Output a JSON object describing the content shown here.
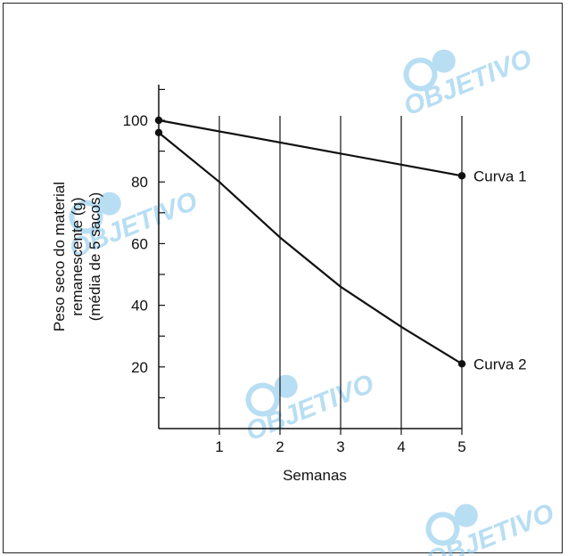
{
  "chart_data": {
    "type": "line",
    "xlabel": "Semanas",
    "ylabel_lines": [
      "Peso seco do material",
      "remanescente (g)",
      "(média de 5 sacos)"
    ],
    "x_ticks": [
      1,
      2,
      3,
      4,
      5
    ],
    "y_ticks": [
      20,
      40,
      60,
      80,
      100
    ],
    "xlim": [
      0,
      5
    ],
    "ylim": [
      0,
      110
    ],
    "grid": "vertical",
    "series": [
      {
        "name": "Curva 1",
        "x": [
          0,
          5
        ],
        "y": [
          100,
          82
        ],
        "color": "#111111"
      },
      {
        "name": "Curva 2",
        "x": [
          0,
          1,
          2,
          3,
          4,
          5
        ],
        "y": [
          96,
          80,
          62,
          46,
          33,
          21
        ],
        "color": "#111111"
      }
    ]
  },
  "watermark": {
    "text": "OBJETIVO",
    "color": "#7fc4ea"
  }
}
